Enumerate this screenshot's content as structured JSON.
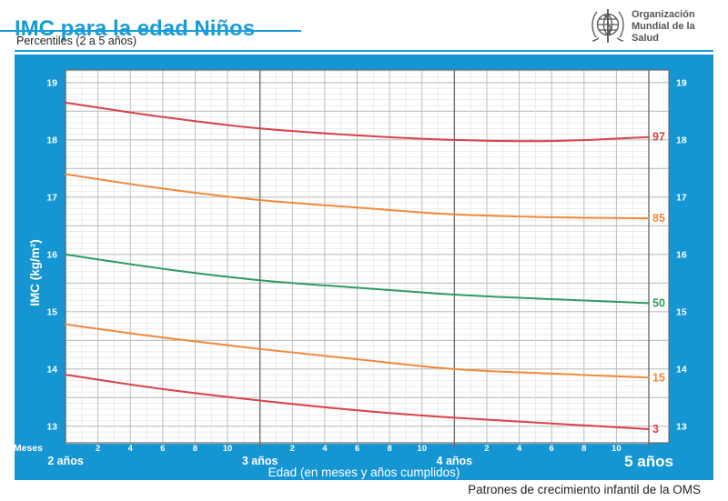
{
  "header": {
    "title": "IMC para la edad Niños",
    "subtitle": "Percentiles (2 a 5 años)",
    "logo": {
      "icon": "who-emblem-icon",
      "line1": "Organización",
      "line2": "Mundial de la Salud"
    }
  },
  "footer": {
    "source": "Patrones de crecimiento infantil de la OMS"
  },
  "colors": {
    "accent_blue": "#1B9CD9",
    "panel_blue": "#1695D3",
    "percentile_red": "#D8414B",
    "percentile_orange": "#EF8A3D",
    "percentile_green": "#2F9B62",
    "grid_light": "#E3E3E3",
    "grid_medium": "#BEBEBE",
    "grid_dark": "#6E6E6E",
    "axis_text": "#FFFFFF",
    "footer_text": "#231F20",
    "logo_gray": "#54565A"
  },
  "chart_data": {
    "type": "line",
    "title": "IMC para la edad Niños",
    "subtitle": "Percentiles (2 a 5 años)",
    "xlabel": "Edad (en meses y años cumplidos)",
    "ylabel": "IMC (kg/m²)",
    "x_axis_unit_label": "Meses",
    "grid": "on",
    "legend_position": "curve end labels at right",
    "x_months": [
      24,
      30,
      36,
      42,
      48,
      54,
      60
    ],
    "xlim_months": [
      24,
      60
    ],
    "ylim": [
      12.7,
      19.2
    ],
    "y_ticks": [
      13,
      14,
      15,
      16,
      17,
      18,
      19
    ],
    "x_year_ticks": [
      {
        "month": 24,
        "label": "2 años"
      },
      {
        "month": 36,
        "label": "3 años"
      },
      {
        "month": 48,
        "label": "4 años"
      },
      {
        "month": 60,
        "label": "5 años"
      }
    ],
    "x_minor_tick_labels": [
      2,
      4,
      6,
      8,
      10
    ],
    "series": [
      {
        "name": "97",
        "color": "#D8414B",
        "values": [
          18.65,
          18.4,
          18.2,
          18.08,
          18.0,
          17.98,
          18.05
        ]
      },
      {
        "name": "85",
        "color": "#EF8A3D",
        "values": [
          17.4,
          17.15,
          16.95,
          16.82,
          16.7,
          16.65,
          16.63
        ]
      },
      {
        "name": "50",
        "color": "#2F9B62",
        "values": [
          16.0,
          15.75,
          15.55,
          15.42,
          15.3,
          15.22,
          15.15
        ]
      },
      {
        "name": "15",
        "color": "#EF8A3D",
        "values": [
          14.78,
          14.55,
          14.35,
          14.17,
          14.0,
          13.92,
          13.85
        ]
      },
      {
        "name": "3",
        "color": "#D8414B",
        "values": [
          13.9,
          13.65,
          13.45,
          13.28,
          13.15,
          13.05,
          12.95
        ]
      }
    ]
  }
}
